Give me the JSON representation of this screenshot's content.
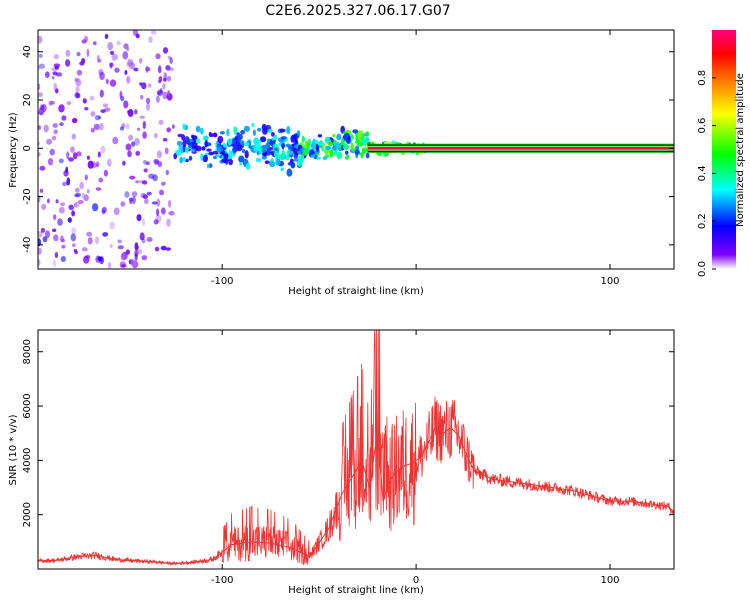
{
  "title": "C2E6.2025.327.06.17.G07",
  "chart_data": [
    {
      "type": "heatmap",
      "name": "spectrogram",
      "xlabel": "Height of straight line (km)",
      "ylabel": "Frequency (Hz)",
      "xlim": [
        -195,
        133
      ],
      "ylim": [
        -50,
        49
      ],
      "xticks": [
        -100,
        0,
        100
      ],
      "xtick_labels": [
        "-100",
        "",
        "100"
      ],
      "yticks": [
        -40,
        -20,
        0,
        20,
        40
      ],
      "ytick_labels": [
        "-40",
        "-20",
        "0",
        "20",
        "40"
      ],
      "colorbar": {
        "label": "Normalized spectral amplitude",
        "range": [
          0,
          1
        ],
        "ticks": [
          0.0,
          0.2,
          0.4,
          0.6,
          0.8
        ],
        "tick_labels": [
          "0.0",
          "0.2",
          "0.4",
          "0.6",
          "0.8"
        ],
        "colors": [
          "#ffffff",
          "#8000ff",
          "#0000ff",
          "#00ffff",
          "#00ff00",
          "#ffff00",
          "#ff8000",
          "#ff0000",
          "#ff0080"
        ]
      },
      "carrier_line": {
        "frequency_hz": 0,
        "x_start_km": -25,
        "x_end_km": 133,
        "amplitude": 0.95
      },
      "regions": [
        {
          "x_range": [
            -195,
            -125
          ],
          "freq_spread_hz": 49,
          "amplitude": 0.15
        },
        {
          "x_range": [
            -125,
            -60
          ],
          "freq_spread_hz": 12,
          "amplitude": 0.3
        },
        {
          "x_range": [
            -60,
            -25
          ],
          "freq_spread_hz": 8,
          "amplitude": 0.45
        },
        {
          "x_range": [
            -25,
            5
          ],
          "freq_spread_hz": 3,
          "amplitude": 0.6
        }
      ]
    },
    {
      "type": "line",
      "name": "snr",
      "xlabel": "Height of straight line (km)",
      "ylabel": "SNR (10 * v/v)",
      "xlim": [
        -195,
        133
      ],
      "ylim": [
        0,
        8800
      ],
      "xticks": [
        -100,
        0,
        100
      ],
      "xtick_labels": [
        "-100",
        "0",
        "100"
      ],
      "yticks": [
        2000,
        4000,
        6000,
        8000
      ],
      "ytick_labels": [
        "2000",
        "4000",
        "6000",
        "8000"
      ],
      "color": "#ee3333",
      "series": [
        {
          "name": "SNR",
          "x": [
            -195,
            -185,
            -175,
            -165,
            -155,
            -145,
            -135,
            -125,
            -115,
            -105,
            -95,
            -85,
            -75,
            -65,
            -55,
            -45,
            -38,
            -32,
            -28,
            -24,
            -20,
            -17,
            -14,
            -10,
            -6,
            -2,
            2,
            6,
            10,
            14,
            18,
            22,
            26,
            30,
            40,
            50,
            60,
            70,
            80,
            90,
            100,
            110,
            120,
            130,
            133
          ],
          "y": [
            300,
            320,
            450,
            500,
            350,
            300,
            260,
            200,
            250,
            350,
            900,
            1000,
            950,
            800,
            450,
            1500,
            2800,
            3500,
            4000,
            3000,
            5000,
            2500,
            3200,
            3600,
            3800,
            3900,
            4100,
            4600,
            5200,
            5000,
            5200,
            4900,
            4200,
            3600,
            3300,
            3200,
            3100,
            3000,
            2900,
            2700,
            2500,
            2500,
            2400,
            2300,
            2100
          ]
        }
      ]
    }
  ]
}
